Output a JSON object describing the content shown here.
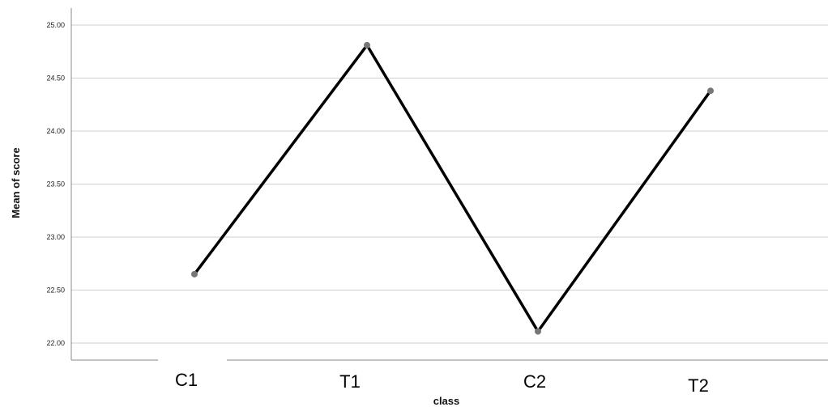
{
  "chart_data": {
    "type": "line",
    "categories": [
      "C1",
      "T1",
      "C2",
      "T2"
    ],
    "series": [
      {
        "values": [
          22.65,
          24.81,
          22.11,
          24.38
        ]
      }
    ],
    "xlabel": "class",
    "ylabel": "Mean of score",
    "ylim": [
      22.0,
      25.0
    ],
    "yticks": [
      "22.00",
      "22.50",
      "23.00",
      "23.50",
      "24.00",
      "24.50",
      "25.00"
    ],
    "grid": true,
    "line_color": "#000000",
    "marker_color": "#777777"
  }
}
